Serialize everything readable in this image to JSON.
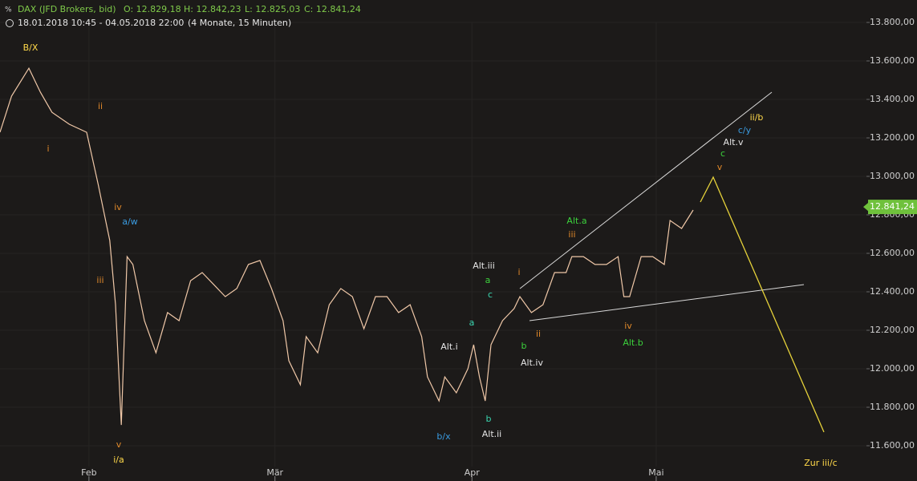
{
  "header": {
    "instrument": "DAX (JFD Brokers, bid)",
    "open": "O: 12.829,18",
    "high": "H: 12.842,23",
    "low": "L: 12.825,03",
    "close": "C: 12.841,24",
    "range": "18.01.2018 10:45 - 04.05.2018 22:00",
    "period": "(4 Monate, 15 Minuten)"
  },
  "chart_data": {
    "type": "line",
    "x": [
      0,
      2,
      5,
      7,
      9,
      12,
      15,
      17,
      18,
      19,
      20,
      21,
      22,
      23,
      25,
      27,
      29,
      31,
      33,
      35,
      37,
      39,
      41,
      43,
      45,
      47,
      49,
      50,
      52,
      53,
      55,
      57,
      59,
      61,
      63,
      65,
      67,
      69,
      71,
      73,
      74,
      76,
      77,
      79,
      81,
      82,
      83,
      84,
      85,
      87,
      89,
      90,
      92,
      94,
      96,
      98,
      99,
      101,
      103,
      105,
      107,
      108,
      109,
      111,
      113,
      115,
      116,
      118,
      120
    ],
    "series": [
      {
        "color": "#f0c8a8",
        "values": [
          13229,
          13417,
          13562,
          13437,
          13333,
          13271,
          13229,
          12958,
          12812,
          12667,
          12333,
          11708,
          12583,
          12542,
          12250,
          12083,
          12292,
          12250,
          12458,
          12500,
          12438,
          12375,
          12417,
          12542,
          12563,
          12417,
          12250,
          12042,
          11917,
          12167,
          12083,
          12333,
          12417,
          12375,
          12208,
          12375,
          12375,
          12292,
          12333,
          12167,
          11958,
          11833,
          11958,
          11875,
          12000,
          12125,
          11958,
          11833,
          12125,
          12250,
          12313,
          12375,
          12292,
          12333,
          12500,
          12500,
          12583,
          12583,
          12542,
          12542,
          12583,
          12375,
          12375,
          12583,
          12583,
          12542,
          12771,
          12729,
          12825
        ]
      }
    ],
    "xlim": [
      0,
      150
    ],
    "xticks": [
      {
        "value": 15.4,
        "label": "Feb"
      },
      {
        "value": 47.6,
        "label": "Mär"
      },
      {
        "value": 81.7,
        "label": "Apr"
      },
      {
        "value": 113.6,
        "label": "Mai"
      }
    ],
    "ylim": [
      11600,
      13800
    ],
    "yticks": [
      {
        "value": 11600,
        "label": "11.600,00"
      },
      {
        "value": 11800,
        "label": "11.800,00"
      },
      {
        "value": 12000,
        "label": "12.000,00"
      },
      {
        "value": 12200,
        "label": "12.200,00"
      },
      {
        "value": 12400,
        "label": "12.400,00"
      },
      {
        "value": 12600,
        "label": "12.600,00"
      },
      {
        "value": 12800,
        "label": "12.800,00"
      },
      {
        "value": 13000,
        "label": "13.000,00"
      },
      {
        "value": 13200,
        "label": "13.200,00"
      },
      {
        "value": 13400,
        "label": "13.400,00"
      },
      {
        "value": 13600,
        "label": "13.600,00"
      },
      {
        "value": 13800,
        "label": "13.800,00"
      }
    ],
    "last_value": {
      "value": 12841.24,
      "label": "12.841,24"
    },
    "grid": true,
    "annotations": [
      "B/X",
      "ii",
      "i",
      "iv",
      "a/w",
      "iii",
      "v",
      "i/a",
      "Alt.iii",
      "a",
      "c",
      "a",
      "Alt.i",
      "b",
      "Alt.ii",
      "b/x",
      "i",
      "ii",
      "b",
      "Alt.iv",
      "Alt.a",
      "iii",
      "iv",
      "Alt.b",
      "ii/b",
      "c/y",
      "Alt.v",
      "c",
      "v",
      "Zur iii/c"
    ]
  }
}
